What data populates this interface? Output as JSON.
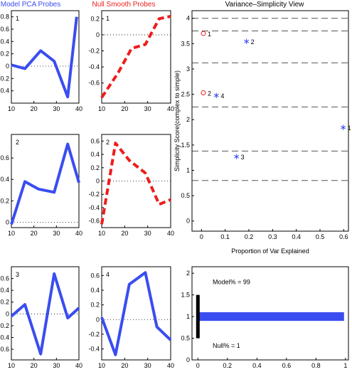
{
  "colors": {
    "model": "#3a4df0",
    "null": "#ee1c1c",
    "black": "#000000",
    "dash": "#555555"
  },
  "column_titles": {
    "model": "Model PCA Probes",
    "null": "Null Smooth Probes",
    "view": "Variance–Simplicity View"
  },
  "chart_data": [
    {
      "type": "line",
      "panel": "model-1",
      "label": "1",
      "series": [
        {
          "x": [
            10,
            16,
            23,
            29,
            35,
            39
          ],
          "y": [
            0.02,
            -0.04,
            0.25,
            0.08,
            -0.5,
            0.8
          ]
        }
      ],
      "ylim": [
        -0.6,
        0.9
      ],
      "xlim": [
        10,
        40
      ],
      "xticks": [
        "10",
        "20",
        "30",
        "40"
      ],
      "yticks": [
        "-0.4",
        "-0.2",
        "0",
        "0.2",
        "0.4",
        "0.6",
        "0.8"
      ]
    },
    {
      "type": "line",
      "panel": "null-1",
      "label": "1",
      "series": [
        {
          "x": [
            10,
            17,
            23,
            29,
            35,
            40
          ],
          "y": [
            -0.78,
            -0.48,
            -0.17,
            -0.12,
            0.2,
            0.23
          ]
        }
      ],
      "ylim": [
        -0.85,
        0.3
      ],
      "xlim": [
        10,
        40
      ],
      "xticks": [
        "10",
        "20",
        "30",
        "40"
      ],
      "yticks": [
        "-0.6",
        "-0.4",
        "-0.2",
        "0",
        "0.2"
      ]
    },
    {
      "type": "line",
      "panel": "model-2",
      "label": "2",
      "series": [
        {
          "x": [
            10,
            16,
            22,
            29,
            35,
            40
          ],
          "y": [
            -0.02,
            0.38,
            0.31,
            0.28,
            0.73,
            0.37
          ]
        }
      ],
      "ylim": [
        -0.05,
        0.82
      ],
      "xlim": [
        10,
        40
      ],
      "xticks": [
        "10",
        "20",
        "30",
        "40"
      ],
      "yticks": [
        "0",
        "0.2",
        "0.4",
        "0.6"
      ]
    },
    {
      "type": "line",
      "panel": "null-2",
      "label": "2",
      "series": [
        {
          "x": [
            10,
            16,
            22,
            29,
            35,
            40
          ],
          "y": [
            -0.65,
            0.57,
            0.31,
            0.12,
            -0.35,
            -0.28
          ]
        }
      ],
      "ylim": [
        -0.7,
        0.7
      ],
      "xlim": [
        10,
        40
      ],
      "xticks": [
        "10",
        "20",
        "30",
        "40"
      ],
      "yticks": [
        "-0.6",
        "-0.4",
        "-0.2",
        "0",
        "0.2",
        "0.4",
        "0.6"
      ]
    },
    {
      "type": "line",
      "panel": "model-3",
      "label": "3",
      "series": [
        {
          "x": [
            10,
            16,
            23,
            29,
            35,
            40
          ],
          "y": [
            -0.04,
            0.16,
            -0.68,
            0.68,
            -0.07,
            0.1
          ]
        }
      ],
      "ylim": [
        -0.78,
        0.8
      ],
      "xlim": [
        10,
        40
      ],
      "xticks": [
        "10",
        "20",
        "30",
        "40"
      ],
      "yticks": [
        "-0.6",
        "-0.4",
        "-0.2",
        "0",
        "0.2",
        "0.4",
        "0.6"
      ]
    },
    {
      "type": "line",
      "panel": "model-4",
      "label": "4",
      "series": [
        {
          "x": [
            10,
            16,
            22,
            29,
            34,
            40
          ],
          "y": [
            0.03,
            -0.48,
            0.48,
            0.64,
            -0.1,
            -0.28
          ]
        }
      ],
      "ylim": [
        -0.55,
        0.72
      ],
      "xlim": [
        10,
        40
      ],
      "xticks": [
        "10",
        "20",
        "30",
        "40"
      ],
      "yticks": [
        "-0.4",
        "-0.2",
        "0",
        "0.2",
        "0.4",
        "0.6"
      ]
    },
    {
      "type": "scatter",
      "panel": "variance-simplicity",
      "xlabel": "Proportion of Var Explained",
      "ylabel": "Simplicity Score(complex to simple)",
      "xlim": [
        -0.04,
        0.62
      ],
      "ylim": [
        -0.2,
        4.15
      ],
      "xticks": [
        "0",
        "0.1",
        "0.2",
        "0.3",
        "0.4",
        "0.5",
        "0.6"
      ],
      "yticks": [
        "0",
        "0.5",
        "1",
        "1.5",
        "2",
        "2.5",
        "3",
        "3.5",
        "4"
      ],
      "hlines": [
        0.8,
        1.38,
        2.25,
        3.12,
        3.75,
        4.0
      ],
      "model_points": [
        {
          "x": 0.598,
          "y": 1.85,
          "label": "1"
        },
        {
          "x": 0.19,
          "y": 3.55,
          "label": "2"
        },
        {
          "x": 0.148,
          "y": 1.27,
          "label": "3"
        },
        {
          "x": 0.063,
          "y": 2.48,
          "label": "4"
        }
      ],
      "null_points": [
        {
          "x": 0.008,
          "y": 3.7,
          "label": "1"
        },
        {
          "x": 0.008,
          "y": 2.53,
          "label": "2"
        }
      ]
    },
    {
      "type": "bar",
      "panel": "percent",
      "orientation": "horizontal",
      "xlim": [
        -0.04,
        1.02
      ],
      "ylim": [
        0,
        2.15
      ],
      "xticks": [
        "0",
        "0.2",
        "0.4",
        "0.6",
        "0.8",
        "1"
      ],
      "yticks": [
        "0",
        "0.5",
        "1",
        "1.5",
        "2"
      ],
      "model_value": 0.99,
      "null_value": 0.01,
      "model_label": "Model% = 99",
      "null_label": "Null% = 1"
    }
  ]
}
